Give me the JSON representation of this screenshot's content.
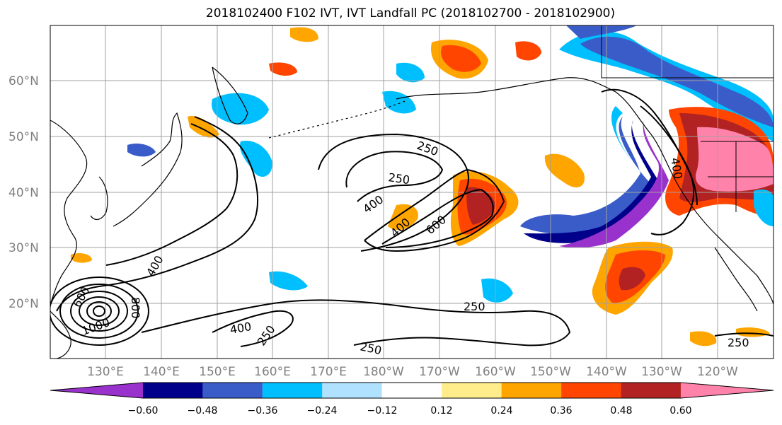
{
  "title": "2018102400 F102 IVT, IVT Landfall PC (2018102700 - 2018102900)",
  "lat_labels": [
    "60°N",
    "50°N",
    "40°N",
    "30°N",
    "20°N"
  ],
  "lon_labels": [
    "130°E",
    "140°E",
    "150°E",
    "160°E",
    "170°E",
    "180°W",
    "170°W",
    "160°W",
    "150°W",
    "140°W",
    "130°W",
    "120°W"
  ],
  "contour_labels": [
    "250",
    "250",
    "400",
    "400",
    "600",
    "400",
    "400",
    "600",
    "800",
    "1000",
    "250",
    "250",
    "250",
    "250",
    "400"
  ],
  "colorbar": {
    "colors": [
      "#9932CC",
      "#00008B",
      "#3A5CC9",
      "#00BFFF",
      "#B0E2FF",
      "#FFFFFF",
      "#FFEC8B",
      "#FFA500",
      "#FF4500",
      "#B22222",
      "#FF82AB"
    ],
    "tick_labels": [
      "−0.60",
      "−0.48",
      "−0.36",
      "−0.24",
      "−0.12",
      "0.12",
      "0.24",
      "0.36",
      "0.48",
      "0.60"
    ]
  }
}
